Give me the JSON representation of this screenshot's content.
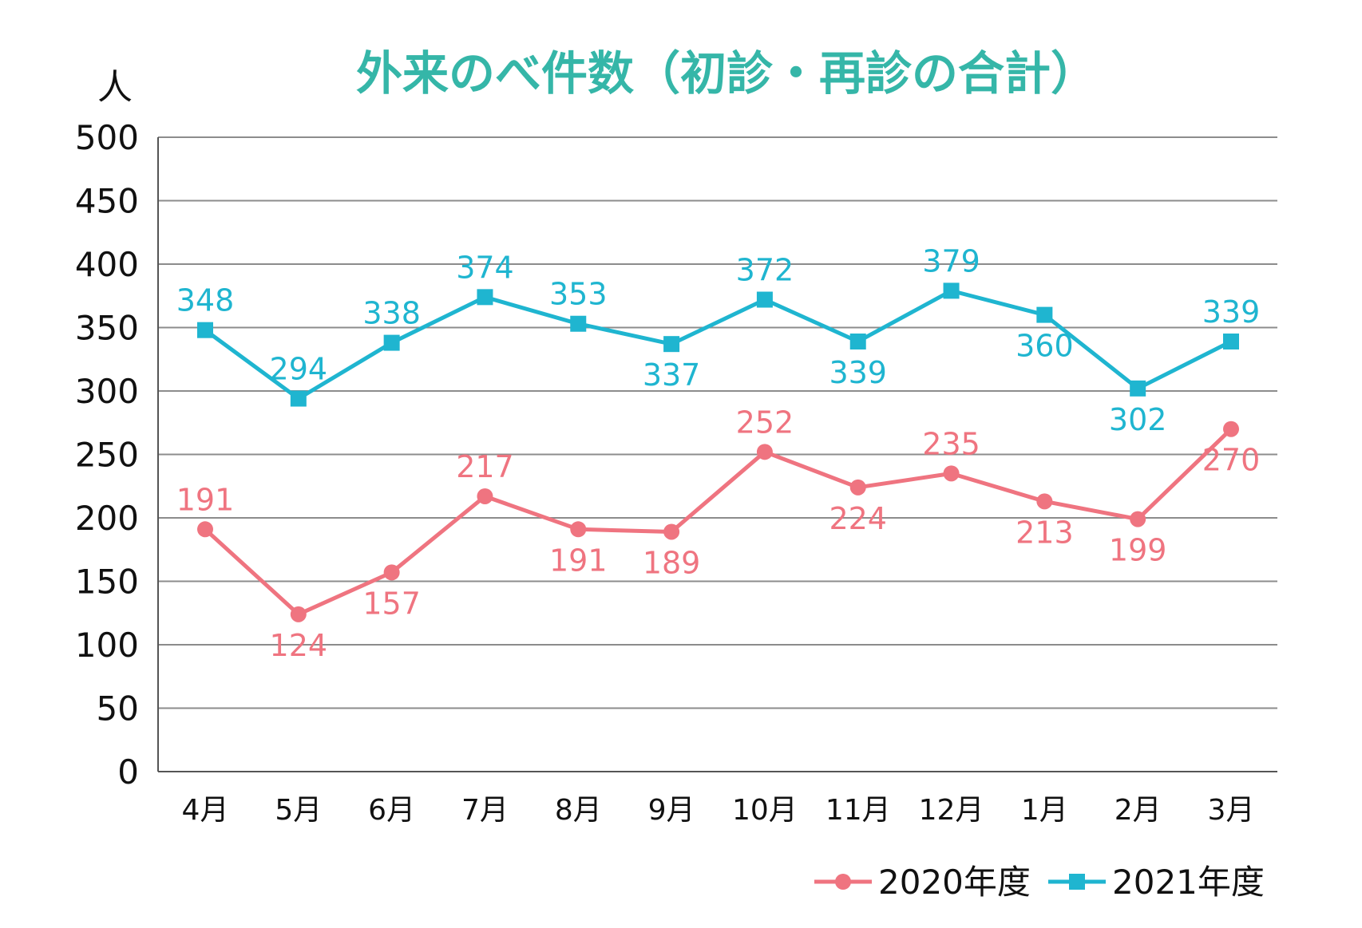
{
  "chart_data": {
    "type": "line",
    "title": "外来のべ件数（初診・再診の合計）",
    "ylabel": "人",
    "xlabel": "",
    "categories": [
      "4月",
      "5月",
      "6月",
      "7月",
      "8月",
      "9月",
      "10月",
      "11月",
      "12月",
      "1月",
      "2月",
      "3月"
    ],
    "ylim": [
      0,
      500
    ],
    "yticks": [
      0,
      50,
      100,
      150,
      200,
      250,
      300,
      350,
      400,
      450,
      500
    ],
    "grid": true,
    "legend_placement": "bottom-right",
    "series": [
      {
        "name": "2020年度",
        "color": "#ef7480",
        "marker": "circle",
        "values": [
          191,
          124,
          157,
          217,
          191,
          189,
          252,
          224,
          235,
          213,
          199,
          270
        ],
        "label_positions": [
          "above",
          "below",
          "below",
          "above",
          "below",
          "below",
          "above",
          "below",
          "above",
          "below",
          "below",
          "below"
        ]
      },
      {
        "name": "2021年度",
        "color": "#1fb5d0",
        "marker": "square",
        "values": [
          348,
          294,
          338,
          374,
          353,
          337,
          372,
          339,
          379,
          360,
          302,
          339
        ],
        "label_positions": [
          "above",
          "above",
          "above",
          "above",
          "above",
          "below",
          "above",
          "below",
          "above",
          "below",
          "below",
          "above"
        ]
      }
    ]
  }
}
